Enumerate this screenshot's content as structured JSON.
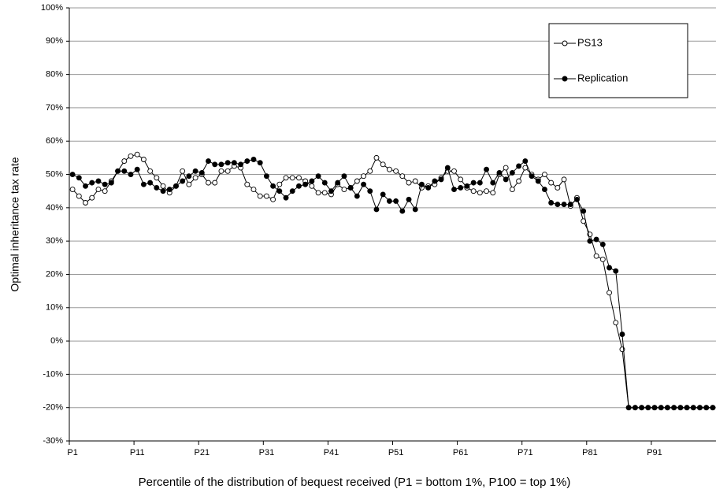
{
  "chart_data": {
    "type": "line",
    "xlabel": "Percentile of the distribution of bequest received (P1 = bottom 1%, P100 = top 1%)",
    "ylabel": "Optimal inheritance tax rate",
    "categories": [
      "P1",
      null,
      null,
      null,
      null,
      null,
      null,
      null,
      null,
      null,
      "P11",
      null,
      null,
      null,
      null,
      null,
      null,
      null,
      null,
      null,
      "P21",
      null,
      null,
      null,
      null,
      null,
      null,
      null,
      null,
      null,
      "P31",
      null,
      null,
      null,
      null,
      null,
      null,
      null,
      null,
      null,
      "P41",
      null,
      null,
      null,
      null,
      null,
      null,
      null,
      null,
      null,
      "P51",
      null,
      null,
      null,
      null,
      null,
      null,
      null,
      null,
      null,
      "P61",
      null,
      null,
      null,
      null,
      null,
      null,
      null,
      null,
      null,
      "P71",
      null,
      null,
      null,
      null,
      null,
      null,
      null,
      null,
      null,
      "P81",
      null,
      null,
      null,
      null,
      null,
      null,
      null,
      null,
      null,
      "P91",
      null,
      null,
      null,
      null,
      null,
      null,
      null,
      null,
      null
    ],
    "ylim": [
      -30,
      100
    ],
    "yticks": [
      {
        "value": -30,
        "label": "-30%"
      },
      {
        "value": -20,
        "label": "-20%"
      },
      {
        "value": -10,
        "label": "-10%"
      },
      {
        "value": 0,
        "label": "0%"
      },
      {
        "value": 10,
        "label": "10%"
      },
      {
        "value": 20,
        "label": "20%"
      },
      {
        "value": 30,
        "label": "30%"
      },
      {
        "value": 40,
        "label": "40%"
      },
      {
        "value": 50,
        "label": "50%"
      },
      {
        "value": 60,
        "label": "60%"
      },
      {
        "value": 70,
        "label": "70%"
      },
      {
        "value": 80,
        "label": "80%"
      },
      {
        "value": 90,
        "label": "90%"
      },
      {
        "value": 100,
        "label": "100%"
      }
    ],
    "grid": true,
    "legend": "top-right",
    "series": [
      {
        "name": "PS13",
        "color": "#000000",
        "marker": "open",
        "values": [
          45.5,
          43.5,
          41.5,
          43,
          45.5,
          45,
          48,
          51,
          54,
          55.5,
          56,
          54.5,
          51,
          49,
          46.5,
          44.5,
          46.5,
          51,
          47,
          49,
          50,
          47.5,
          47.5,
          51,
          51,
          52.5,
          52,
          47,
          45.5,
          43.5,
          43.5,
          42.5,
          47,
          49,
          49,
          49,
          48,
          46.5,
          44.5,
          44.5,
          44,
          47,
          45.5,
          46,
          48,
          49.5,
          51,
          55,
          53,
          51.5,
          51,
          49.5,
          47.5,
          48,
          46,
          46.5,
          47,
          49,
          51,
          51,
          48.5,
          46,
          45,
          44.5,
          45,
          44.5,
          50,
          52,
          45.5,
          48,
          52,
          50,
          48.5,
          50,
          47.5,
          46,
          48.5,
          40.5,
          43,
          36,
          32,
          25.5,
          24.5,
          14.5,
          5.5,
          -2.5,
          -20,
          -20,
          -20,
          -20,
          -20,
          -20,
          -20,
          -20,
          -20,
          -20,
          -20,
          -20,
          -20,
          -20
        ]
      },
      {
        "name": "Replication",
        "color": "#000000",
        "marker": "filled",
        "values": [
          50,
          49,
          46.5,
          47.5,
          48,
          47,
          47.5,
          51,
          51,
          50,
          51.5,
          47,
          47.5,
          46,
          45,
          45.5,
          46.5,
          48,
          49.5,
          51,
          50.5,
          54,
          53,
          53,
          53.5,
          53.5,
          53,
          54,
          54.5,
          53.5,
          49.5,
          46.5,
          45,
          43,
          45,
          46.5,
          47,
          48,
          49.5,
          47.5,
          45,
          47.5,
          49.5,
          46,
          43.5,
          47,
          45,
          39.5,
          44,
          42,
          42,
          39,
          42.5,
          39.5,
          47,
          46,
          48,
          48.5,
          52,
          45.5,
          46,
          46.5,
          47.5,
          47.5,
          51.5,
          47.5,
          50.5,
          48.5,
          50.5,
          52.5,
          54,
          49.5,
          48,
          45.5,
          41.5,
          41,
          41,
          41,
          42.5,
          39,
          30,
          30.5,
          29,
          22,
          21,
          2,
          -20,
          -20,
          -20,
          -20,
          -20,
          -20,
          -20,
          -20,
          -20,
          -20,
          -20,
          -20,
          -20,
          -20
        ]
      }
    ]
  }
}
